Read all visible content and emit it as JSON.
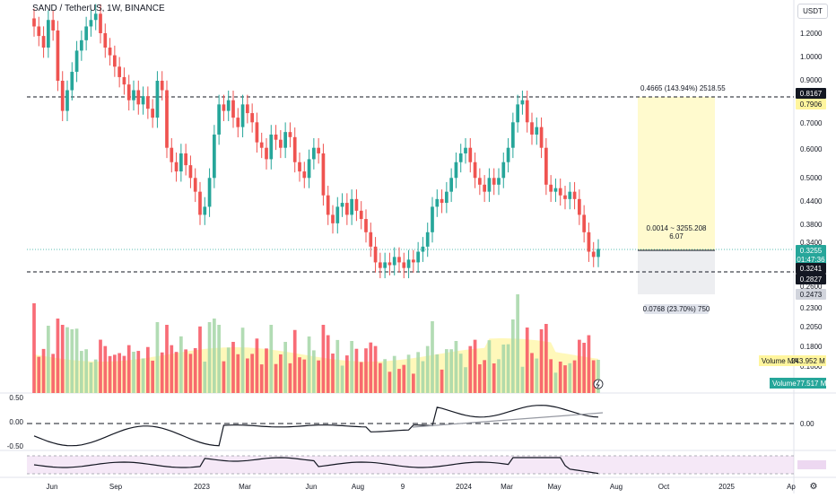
{
  "header": {
    "symbol": "SAND / TetherUS, 1W, BINANCE"
  },
  "unit": "USDT",
  "price_axis": {
    "ticks": [
      "1.2000",
      "1.0000",
      "0.9000",
      "0.7906",
      "0.7000",
      "0.6000",
      "0.5000",
      "0.4400",
      "0.3800",
      "0.3400",
      "0.2600",
      "0.2473",
      "0.2300",
      "0.2050",
      "0.1800",
      "0.1600"
    ]
  },
  "badges": {
    "top_line": "0.8167",
    "current": "0.3255",
    "countdown": "01:47:36",
    "mid": "0.3241",
    "low_line": "0.2827",
    "volume_ma_label": "Volume MA",
    "volume_ma_value": "243.952 M",
    "volume_label": "Volume",
    "volume_value": "77.517 M"
  },
  "measure": {
    "top_text": "0.4665 (143.94%) 2518.55",
    "mid_text1": "0.0014 ~ 3255.208",
    "mid_text2": "6.07",
    "bottom_text": "0.0768 (23.70%) 750"
  },
  "osc1": {
    "ticks": [
      "0.00"
    ],
    "left_labels": [
      "0.50",
      "0.00",
      "-0.50"
    ]
  },
  "time_axis": {
    "labels": [
      "Jun",
      "Sep",
      "2023",
      "Mar",
      "Jun",
      "Aug",
      "9",
      "2024",
      "Mar",
      "May",
      "Aug",
      "Oct",
      "2025",
      "Ap"
    ]
  },
  "colors": {
    "up": "#26a69a",
    "down": "#ef5350",
    "vol_up": "#a5d6a7",
    "vol_down": "#f7525f",
    "ma_fill": "#fff59d"
  },
  "chart_data": {
    "type": "candlestick",
    "title": "SAND / TetherUS, 1W, BINANCE",
    "closes": [
      1.25,
      1.18,
      1.1,
      1.3,
      1.22,
      0.9,
      0.75,
      0.85,
      0.95,
      1.08,
      1.15,
      1.25,
      1.3,
      1.35,
      1.2,
      1.1,
      1.05,
      0.98,
      0.92,
      0.88,
      0.8,
      0.85,
      0.78,
      0.82,
      0.76,
      0.72,
      0.9,
      0.85,
      0.6,
      0.55,
      0.52,
      0.58,
      0.54,
      0.5,
      0.46,
      0.4,
      0.42,
      0.5,
      0.65,
      0.78,
      0.75,
      0.8,
      0.72,
      0.68,
      0.78,
      0.74,
      0.7,
      0.62,
      0.6,
      0.56,
      0.65,
      0.63,
      0.6,
      0.66,
      0.64,
      0.55,
      0.52,
      0.5,
      0.56,
      0.6,
      0.58,
      0.45,
      0.4,
      0.38,
      0.42,
      0.43,
      0.4,
      0.44,
      0.41,
      0.39,
      0.36,
      0.33,
      0.3,
      0.29,
      0.3,
      0.295,
      0.31,
      0.3,
      0.29,
      0.305,
      0.3,
      0.32,
      0.33,
      0.36,
      0.42,
      0.44,
      0.43,
      0.46,
      0.5,
      0.55,
      0.58,
      0.6,
      0.55,
      0.5,
      0.48,
      0.46,
      0.5,
      0.48,
      0.5,
      0.55,
      0.6,
      0.7,
      0.78,
      0.8,
      0.7,
      0.65,
      0.68,
      0.6,
      0.48,
      0.46,
      0.47,
      0.45,
      0.44,
      0.46,
      0.44,
      0.4,
      0.36,
      0.32,
      0.31,
      0.3255
    ]
  }
}
